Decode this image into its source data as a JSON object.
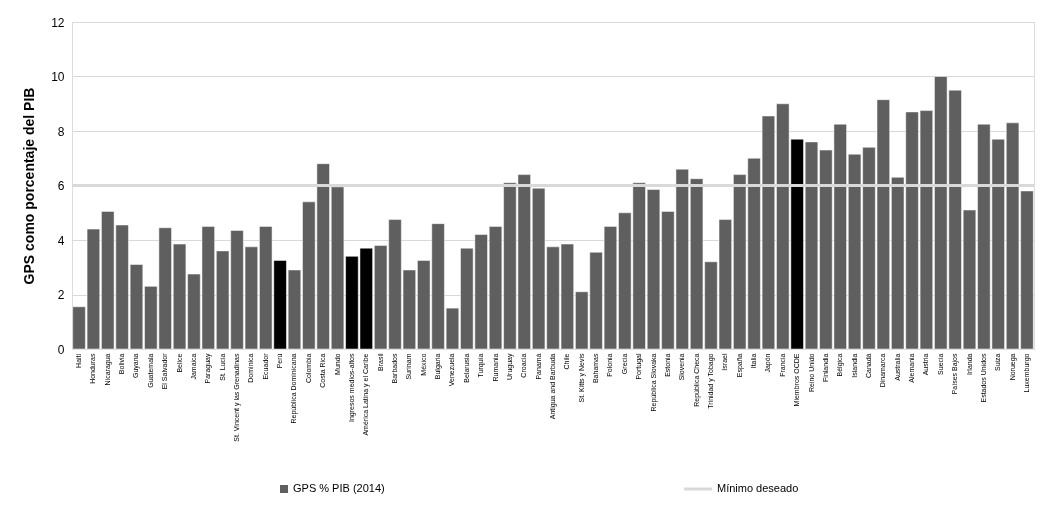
{
  "chart_data": {
    "type": "bar",
    "ylabel": "GPS como porcentaje del PIB",
    "categories": [
      "Haití",
      "Honduras",
      "Nicaragua",
      "Bolivia",
      "Guyana",
      "Guatemala",
      "El Salvador",
      "Belice",
      "Jamaica",
      "Paraguay",
      "St. Lucia",
      "St. Vincent y las Grenadinas",
      "Dominica",
      "Ecuador",
      "Perú",
      "República Dominicana",
      "Colombia",
      "Costa Rica",
      "Mundo",
      "Ingresos medios-altos",
      "América Latina y el Caribe",
      "Brasil",
      "Barbados",
      "Surinam",
      "México",
      "Bulgaria",
      "Venezuela",
      "Belarusia",
      "Turquía",
      "Rumania",
      "Uruguay",
      "Croacia",
      "Panamá",
      "Antigua and Barbuda",
      "Chile",
      "St. Kitts y Nevis",
      "Bahamas",
      "Polonia",
      "Grecia",
      "Portugal",
      "República Slovaka",
      "Estonia",
      "Slovenia",
      "República Checa",
      "Trinidad y Tobago",
      "Israel",
      "España",
      "Italia",
      "Japón",
      "Francia",
      "Miembros OCDE",
      "Reino Unido",
      "Finlandia",
      "Bélgica",
      "Islandia",
      "Canadá",
      "Dinamarca",
      "Australia",
      "Alemania",
      "Austria",
      "Suecia",
      "Países Bajos",
      "Irlanda",
      "Estados Unidos",
      "Suiza",
      "Noruega",
      "Luxemburgo"
    ],
    "series": [
      {
        "name": "GPS % PIB (2014)",
        "color": "#5f5f5f",
        "values": [
          1.55,
          4.4,
          5.05,
          4.55,
          3.1,
          2.3,
          4.45,
          3.85,
          2.75,
          4.5,
          3.6,
          4.35,
          3.75,
          4.5,
          3.25,
          2.9,
          5.4,
          6.8,
          5.95,
          3.4,
          3.7,
          3.8,
          4.75,
          2.9,
          3.25,
          4.6,
          1.5,
          3.7,
          4.2,
          4.5,
          6.1,
          6.4,
          5.9,
          3.75,
          3.85,
          2.1,
          3.55,
          4.5,
          5.0,
          6.1,
          5.85,
          5.05,
          6.6,
          6.25,
          3.2,
          4.75,
          6.4,
          7.0,
          8.55,
          9.0,
          7.7,
          7.6,
          7.3,
          8.25,
          7.15,
          7.4,
          9.15,
          6.3,
          8.7,
          8.75,
          10.0,
          9.5,
          5.1,
          8.25,
          7.7,
          8.3,
          5.8
        ],
        "colors": [
          "#5f5f5f",
          "#5f5f5f",
          "#5f5f5f",
          "#5f5f5f",
          "#5f5f5f",
          "#5f5f5f",
          "#5f5f5f",
          "#5f5f5f",
          "#5f5f5f",
          "#5f5f5f",
          "#5f5f5f",
          "#5f5f5f",
          "#5f5f5f",
          "#5f5f5f",
          "#000000",
          "#5f5f5f",
          "#5f5f5f",
          "#5f5f5f",
          "#5f5f5f",
          "#000000",
          "#000000",
          "#5f5f5f",
          "#5f5f5f",
          "#5f5f5f",
          "#5f5f5f",
          "#5f5f5f",
          "#5f5f5f",
          "#5f5f5f",
          "#5f5f5f",
          "#5f5f5f",
          "#5f5f5f",
          "#5f5f5f",
          "#5f5f5f",
          "#5f5f5f",
          "#5f5f5f",
          "#5f5f5f",
          "#5f5f5f",
          "#5f5f5f",
          "#5f5f5f",
          "#5f5f5f",
          "#5f5f5f",
          "#5f5f5f",
          "#5f5f5f",
          "#5f5f5f",
          "#5f5f5f",
          "#5f5f5f",
          "#5f5f5f",
          "#5f5f5f",
          "#5f5f5f",
          "#5f5f5f",
          "#000000",
          "#5f5f5f",
          "#5f5f5f",
          "#5f5f5f",
          "#5f5f5f",
          "#5f5f5f",
          "#5f5f5f",
          "#5f5f5f",
          "#5f5f5f",
          "#5f5f5f",
          "#5f5f5f",
          "#5f5f5f",
          "#5f5f5f",
          "#5f5f5f",
          "#5f5f5f",
          "#5f5f5f",
          "#5f5f5f"
        ]
      }
    ],
    "ref_lines": [
      {
        "axis": "y",
        "value": 6,
        "label": "Mínimo deseado",
        "color": "#d9d9d9"
      }
    ],
    "ylim": [
      0,
      12
    ],
    "yticks": [
      0,
      2,
      4,
      6,
      8,
      10,
      12
    ],
    "grid": "y",
    "legend": "bottom"
  }
}
